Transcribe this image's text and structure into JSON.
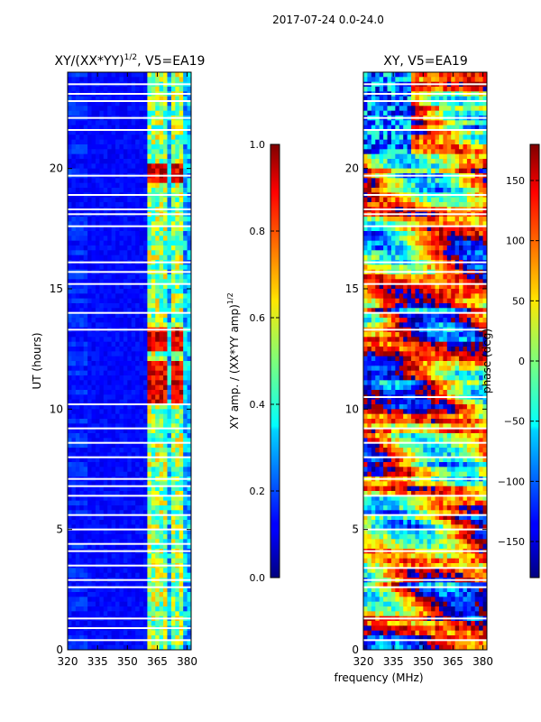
{
  "suptitle": "2017-07-24 0.0-24.0",
  "shared_xlabel": "frequency (MHz)",
  "chart_data": [
    {
      "type": "heatmap",
      "title": "XY/(XX*YY)",
      "title_exponent": "1/2",
      "title_suffix": ", V5=EA19",
      "xlabel": "",
      "ylabel": "UT (hours)",
      "xlim": [
        320,
        382
      ],
      "ylim": [
        0,
        24
      ],
      "xticks": [
        320,
        335,
        350,
        365,
        380
      ],
      "yticks": [
        0,
        5,
        10,
        15,
        20
      ],
      "colorbar": {
        "label": "XY amp. / (XX*YY amp)",
        "label_exponent": "1/2",
        "range": [
          0.0,
          1.0
        ],
        "ticks": [
          "0.0",
          "0.2",
          "0.4",
          "0.6",
          "0.8",
          "1.0"
        ],
        "tick_values": [
          0.0,
          0.2,
          0.4,
          0.6,
          0.8,
          1.0
        ]
      },
      "features": {
        "background_amplitude": 0.1,
        "bright_channel_bands_mhz": [
          [
            361,
            363.5
          ],
          [
            364.5,
            366
          ],
          [
            366.5,
            368
          ],
          [
            369,
            370.5
          ],
          [
            372,
            373.5
          ],
          [
            375,
            376.5
          ],
          [
            377,
            378.5
          ]
        ],
        "high_amplitude_windows_ut": [
          [
            10.2,
            12.0
          ],
          [
            12.4,
            13.3
          ],
          [
            19.4,
            20.2
          ]
        ],
        "flagged_gaps_ut": [
          0.4,
          0.9,
          1.3,
          2.6,
          2.9,
          3.5,
          4.1,
          4.4,
          5.0,
          5.6,
          6.4,
          6.8,
          7.1,
          8.0,
          8.6,
          9.2,
          10.2,
          13.3,
          14.0,
          15.2,
          15.7,
          16.1,
          17.6,
          18.1,
          18.3,
          18.9,
          19.7,
          21.6,
          22.1,
          22.8,
          23.1,
          23.5
        ]
      }
    },
    {
      "type": "heatmap",
      "title": "XY, V5=EA19",
      "xlabel": "frequency (MHz)",
      "ylabel": "",
      "xlim": [
        320,
        382
      ],
      "ylim": [
        0,
        24
      ],
      "xticks": [
        320,
        335,
        350,
        365,
        380
      ],
      "yticks": [
        0,
        5,
        10,
        15,
        20
      ],
      "colorbar": {
        "label": "phase (deg)",
        "range": [
          -180,
          180
        ],
        "ticks": [
          "150",
          "100",
          "50",
          "0",
          "−50",
          "−100",
          "−150"
        ],
        "tick_values": [
          150,
          100,
          50,
          0,
          -50,
          -100,
          -150
        ]
      },
      "features": {
        "phase_wraps_across_band": true,
        "flagged_gaps_ut": [
          0.4,
          1.3,
          2.6,
          2.9,
          3.4,
          4.1,
          5.0,
          5.6,
          6.4,
          7.1,
          8.0,
          8.6,
          9.2,
          10.5,
          13.3,
          14.0,
          15.2,
          15.7,
          16.1,
          17.6,
          18.1,
          18.3,
          18.9,
          19.7,
          21.6,
          22.1,
          22.8,
          23.1,
          23.5
        ]
      }
    }
  ]
}
